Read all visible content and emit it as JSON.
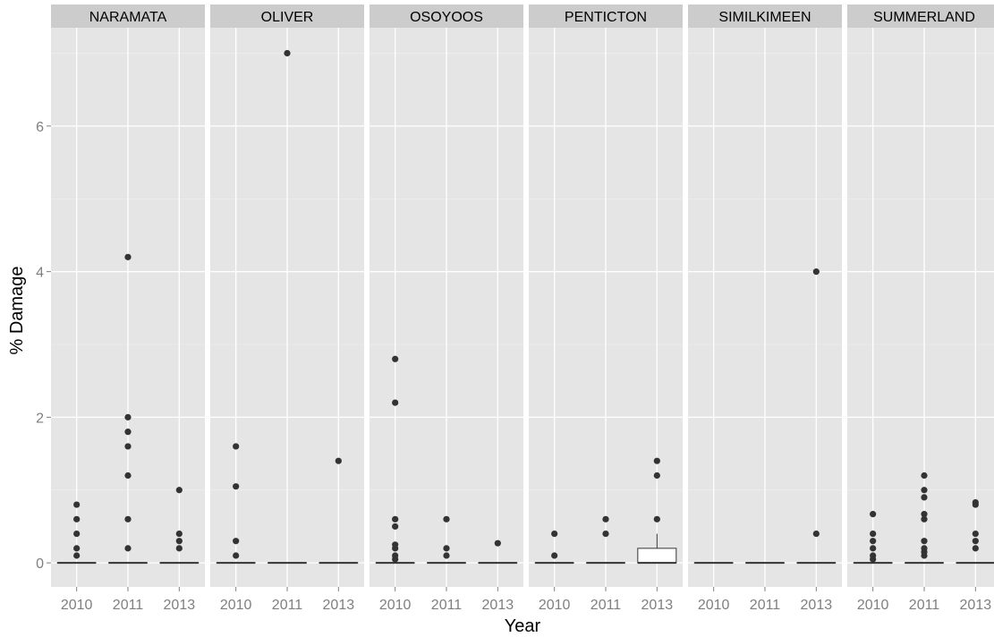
{
  "chart_data": {
    "type": "boxplot",
    "xlabel": "Year",
    "ylabel": "% Damage",
    "ylim": [
      -0.33,
      7.35
    ],
    "yticks": [
      0,
      2,
      4,
      6
    ],
    "categories": [
      "2010",
      "2011",
      "2013"
    ],
    "panel_strip_color": "#CCCCCC",
    "panel_bg_color": "#E5E5E5",
    "gridline_color": "#FFFFFF",
    "point_color": "#333333",
    "panels": [
      {
        "name": "NARAMATA",
        "boxes": [
          {
            "year": "2010",
            "q1": 0,
            "median": 0,
            "q3": 0,
            "whisker_low": 0,
            "whisker_high": 0,
            "outliers": [
              0.1,
              0.2,
              0.4,
              0.6,
              0.8
            ]
          },
          {
            "year": "2011",
            "q1": 0,
            "median": 0,
            "q3": 0,
            "whisker_low": 0,
            "whisker_high": 0,
            "outliers": [
              0.2,
              0.6,
              1.2,
              1.6,
              1.8,
              2.0,
              4.2
            ]
          },
          {
            "year": "2013",
            "q1": 0,
            "median": 0,
            "q3": 0,
            "whisker_low": 0,
            "whisker_high": 0,
            "outliers": [
              0.2,
              0.3,
              0.4,
              1.0
            ]
          }
        ]
      },
      {
        "name": "OLIVER",
        "boxes": [
          {
            "year": "2010",
            "q1": 0,
            "median": 0,
            "q3": 0,
            "whisker_low": 0,
            "whisker_high": 0,
            "outliers": [
              0.1,
              0.3,
              1.05,
              1.6
            ]
          },
          {
            "year": "2011",
            "q1": 0,
            "median": 0,
            "q3": 0,
            "whisker_low": 0,
            "whisker_high": 0,
            "outliers": [
              7.0
            ]
          },
          {
            "year": "2013",
            "q1": 0,
            "median": 0,
            "q3": 0,
            "whisker_low": 0,
            "whisker_high": 0,
            "outliers": [
              1.4
            ]
          }
        ]
      },
      {
        "name": "OSOYOOS",
        "boxes": [
          {
            "year": "2010",
            "q1": 0,
            "median": 0,
            "q3": 0,
            "whisker_low": 0,
            "whisker_high": 0,
            "outliers": [
              0.05,
              0.1,
              0.2,
              0.25,
              0.5,
              0.6,
              2.2,
              2.8
            ]
          },
          {
            "year": "2011",
            "q1": 0,
            "median": 0,
            "q3": 0,
            "whisker_low": 0,
            "whisker_high": 0,
            "outliers": [
              0.1,
              0.2,
              0.6
            ]
          },
          {
            "year": "2013",
            "q1": 0,
            "median": 0,
            "q3": 0,
            "whisker_low": 0,
            "whisker_high": 0,
            "outliers": [
              0.27
            ]
          }
        ]
      },
      {
        "name": "PENTICTON",
        "boxes": [
          {
            "year": "2010",
            "q1": 0,
            "median": 0,
            "q3": 0,
            "whisker_low": 0,
            "whisker_high": 0,
            "outliers": [
              0.1,
              0.4
            ]
          },
          {
            "year": "2011",
            "q1": 0,
            "median": 0,
            "q3": 0,
            "whisker_low": 0,
            "whisker_high": 0,
            "outliers": [
              0.4,
              0.6
            ]
          },
          {
            "year": "2013",
            "q1": 0,
            "median": 0,
            "q3": 0.2,
            "whisker_low": 0,
            "whisker_high": 0.4,
            "outliers": [
              0.6,
              1.2,
              1.4
            ]
          }
        ]
      },
      {
        "name": "SIMILKIMEEN",
        "boxes": [
          {
            "year": "2010",
            "q1": 0,
            "median": 0,
            "q3": 0,
            "whisker_low": 0,
            "whisker_high": 0,
            "outliers": []
          },
          {
            "year": "2011",
            "q1": 0,
            "median": 0,
            "q3": 0,
            "whisker_low": 0,
            "whisker_high": 0,
            "outliers": []
          },
          {
            "year": "2013",
            "q1": 0,
            "median": 0,
            "q3": 0,
            "whisker_low": 0,
            "whisker_high": 0,
            "outliers": [
              0.4,
              4.0
            ]
          }
        ]
      },
      {
        "name": "SUMMERLAND",
        "boxes": [
          {
            "year": "2010",
            "q1": 0,
            "median": 0,
            "q3": 0,
            "whisker_low": 0,
            "whisker_high": 0,
            "outliers": [
              0.05,
              0.1,
              0.2,
              0.3,
              0.4,
              0.67
            ]
          },
          {
            "year": "2011",
            "q1": 0,
            "median": 0,
            "q3": 0,
            "whisker_low": 0,
            "whisker_high": 0,
            "outliers": [
              0.1,
              0.15,
              0.2,
              0.3,
              0.6,
              0.67,
              0.9,
              1.0,
              1.2
            ]
          },
          {
            "year": "2013",
            "q1": 0,
            "median": 0,
            "q3": 0,
            "whisker_low": 0,
            "whisker_high": 0,
            "outliers": [
              0.2,
              0.3,
              0.4,
              0.8,
              0.83
            ]
          }
        ]
      }
    ]
  }
}
